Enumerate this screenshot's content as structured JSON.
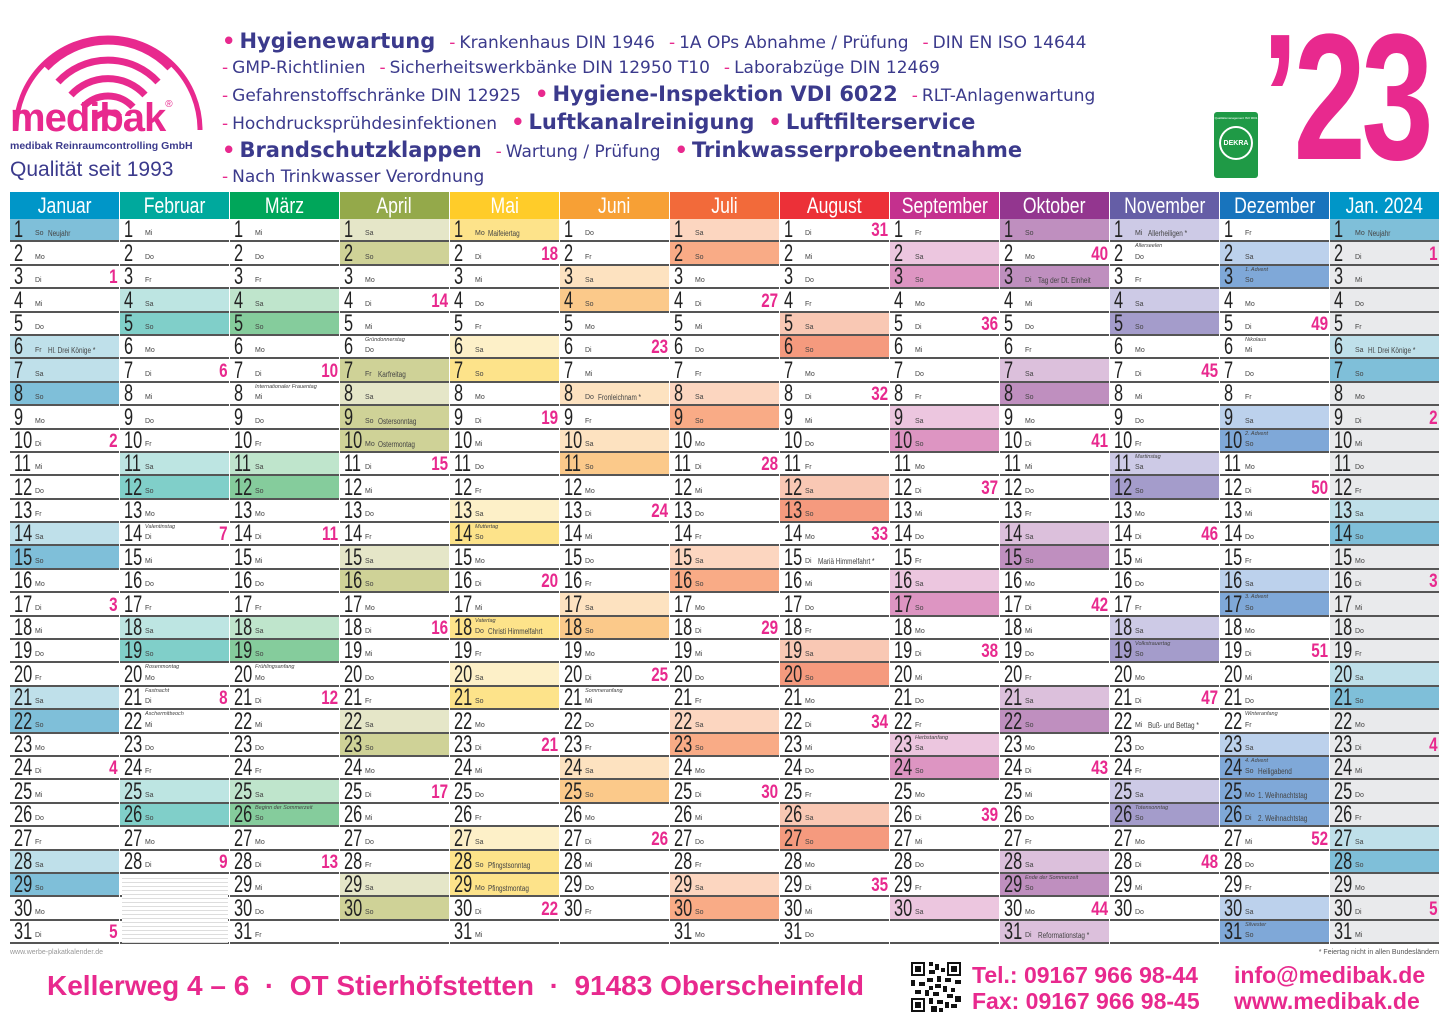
{
  "brand": {
    "name": "medibak",
    "registered": "®",
    "company": "medibak Reinraumcontrolling GmbH",
    "since": "Qualität seit 1993",
    "year": "’23",
    "cert_title": "Qualitätsmanagement ISO 9001",
    "cert_brand": "DEKRA"
  },
  "slogans": [
    {
      "text": "Hygienewartung",
      "bold": true
    },
    {
      "text": "Krankenhaus DIN 1946",
      "bold": false
    },
    {
      "text": "1A OPs Abnahme / Prüfung",
      "bold": false
    },
    {
      "text": "DIN EN ISO 14644",
      "bold": false
    },
    {
      "text": "GMP-Richtlinien",
      "bold": false
    },
    {
      "text": "Sicherheitswerkbänke DIN 12950 T10",
      "bold": false
    },
    {
      "text": "Laborabzüge DIN 12469",
      "bold": false
    },
    {
      "text": "Gefahrenstoffschränke DIN 12925",
      "bold": false
    },
    {
      "text": "Hygiene-Inspektion VDI 6022",
      "bold": true
    },
    {
      "text": "RLT-Anlagenwartung",
      "bold": false
    },
    {
      "text": "Hochdrucksprühdesinfektionen",
      "bold": false
    },
    {
      "text": "Luftkanalreinigung",
      "bold": true
    },
    {
      "text": "Luftfilterservice",
      "bold": true
    },
    {
      "text": "Brandschutzklappen",
      "bold": true
    },
    {
      "text": "Wartung / Prüfung",
      "bold": false
    },
    {
      "text": "Trinkwasserprobeentnahme",
      "bold": true
    },
    {
      "text": "Nach Trinkwasser Verordnung",
      "bold": false
    }
  ],
  "weekdays": [
    "Mo",
    "Di",
    "Mi",
    "Do",
    "Fr",
    "Sa",
    "So"
  ],
  "months": [
    {
      "name": "Januar",
      "start": 6,
      "days": 31,
      "color": "#0096c8",
      "sat": "#bfe0ea",
      "sun": "#7fbfd9",
      "weeks": {
        "3": 1,
        "10": 2,
        "17": 3,
        "24": 4,
        "31": 5
      },
      "holidays": [
        {
          "day": 1,
          "label": "Neujahr",
          "style": "inline",
          "shade": "sun"
        },
        {
          "day": 6,
          "label": "Hl. Drei Könige *",
          "style": "inline",
          "shade": "sat"
        }
      ]
    },
    {
      "name": "Februar",
      "start": 2,
      "days": 28,
      "color": "#00a99d",
      "sat": "#bde5e2",
      "sun": "#80cfc9",
      "weeks": {
        "7": 6,
        "14": 7,
        "21": 8,
        "28": 9
      },
      "holidays": [
        {
          "day": 14,
          "label": "Valentinstag",
          "style": "note"
        },
        {
          "day": 20,
          "label": "Rosenmontag",
          "style": "note"
        },
        {
          "day": 21,
          "label": "Fastnacht",
          "style": "note"
        },
        {
          "day": 22,
          "label": "Aschermittwoch",
          "style": "note"
        }
      ]
    },
    {
      "name": "März",
      "start": 2,
      "days": 31,
      "color": "#00a65a",
      "sat": "#bfe5cc",
      "sun": "#85cc9c",
      "weeks": {
        "7": 10,
        "14": 11,
        "21": 12,
        "28": 13
      },
      "holidays": [
        {
          "day": 8,
          "label": "Internationaler Frauentag",
          "style": "note"
        },
        {
          "day": 20,
          "label": "Frühlingsanfang",
          "style": "note"
        },
        {
          "day": 26,
          "label": "Beginn der Sommerzeit",
          "style": "note"
        }
      ]
    },
    {
      "name": "April",
      "start": 5,
      "days": 30,
      "color": "#94a94a",
      "sat": "#e5e6c8",
      "sun": "#cfd297",
      "weeks": {
        "4": 14,
        "11": 15,
        "18": 16,
        "25": 17
      },
      "holidays": [
        {
          "day": 6,
          "label": "Gründonnerstag",
          "style": "note"
        },
        {
          "day": 7,
          "label": "Karfreitag",
          "style": "inline",
          "shade": "sun"
        },
        {
          "day": 9,
          "label": "Ostersonntag",
          "style": "inline"
        },
        {
          "day": 10,
          "label": "Ostermontag",
          "style": "inline",
          "shade": "sun"
        }
      ]
    },
    {
      "name": "Mai",
      "start": 0,
      "days": 31,
      "color": "#ffcc29",
      "sat": "#fdf0c8",
      "sun": "#fde38a",
      "weeks": {
        "2": 18,
        "9": 19,
        "16": 20,
        "23": 21,
        "30": 22
      },
      "holidays": [
        {
          "day": 1,
          "label": "Maifeiertag",
          "style": "inline",
          "shade": "sun"
        },
        {
          "day": 14,
          "label": "Muttertag",
          "style": "note"
        },
        {
          "day": 18,
          "label": "Vatertag",
          "style": "note"
        },
        {
          "day": 18,
          "label": "Christi Himmelfahrt",
          "style": "inline",
          "shade": "sun"
        },
        {
          "day": 28,
          "label": "Pfingstsonntag",
          "style": "inline"
        },
        {
          "day": 29,
          "label": "Pfingstmontag",
          "style": "inline",
          "shade": "sun"
        }
      ]
    },
    {
      "name": "Juni",
      "start": 3,
      "days": 30,
      "color": "#f7a035",
      "sat": "#fde2c0",
      "sun": "#fbc98a",
      "weeks": {
        "6": 23,
        "13": 24,
        "20": 25,
        "27": 26
      },
      "holidays": [
        {
          "day": 8,
          "label": "Fronleichnam *",
          "style": "inline",
          "shade": "sat"
        },
        {
          "day": 21,
          "label": "Sommeranfang",
          "style": "note"
        }
      ]
    },
    {
      "name": "Juli",
      "start": 5,
      "days": 31,
      "color": "#f26a3a",
      "sat": "#fcd6c0",
      "sun": "#f9ab86",
      "weeks": {
        "4": 27,
        "11": 28,
        "18": 29,
        "25": 30
      },
      "holidays": []
    },
    {
      "name": "August",
      "start": 1,
      "days": 31,
      "color": "#ec3038",
      "sat": "#f9c8b4",
      "sun": "#f59a7e",
      "weeks": {
        "1": 31,
        "8": 32,
        "14": 33,
        "22": 34,
        "29": 35
      },
      "holidays": [
        {
          "day": 15,
          "label": "Mariä Himmelfahrt *",
          "style": "inline"
        }
      ]
    },
    {
      "name": "September",
      "start": 4,
      "days": 30,
      "color": "#c4308e",
      "sat": "#ecc6df",
      "sun": "#dd95c2",
      "weeks": {
        "5": 36,
        "12": 37,
        "19": 38,
        "26": 39
      },
      "holidays": [
        {
          "day": 23,
          "label": "Herbstanfang",
          "style": "note"
        }
      ]
    },
    {
      "name": "Oktober",
      "start": 6,
      "days": 31,
      "color": "#93368f",
      "sat": "#dcc0dc",
      "sun": "#bf8fbf",
      "weeks": {
        "2": 40,
        "10": 41,
        "17": 42,
        "24": 43,
        "30": 44
      },
      "holidays": [
        {
          "day": 3,
          "label": "Tag der Dt. Einheit",
          "style": "inline",
          "shade": "sun"
        },
        {
          "day": 29,
          "label": "Ende der Sommerzeit",
          "style": "note"
        },
        {
          "day": 31,
          "label": "Reformationstag *",
          "style": "inline",
          "shade": "sat"
        }
      ]
    },
    {
      "name": "November",
      "start": 2,
      "days": 30,
      "color": "#655ea6",
      "sat": "#cdcae6",
      "sun": "#a49ccb",
      "weeks": {
        "7": 45,
        "14": 46,
        "21": 47,
        "28": 48
      },
      "holidays": [
        {
          "day": 1,
          "label": "Allerheiligen *",
          "style": "inline",
          "shade": "sat"
        },
        {
          "day": 2,
          "label": "Allerseelen",
          "style": "note"
        },
        {
          "day": 11,
          "label": "Martinstag",
          "style": "note"
        },
        {
          "day": 19,
          "label": "Volkstrauertag",
          "style": "note"
        },
        {
          "day": 22,
          "label": "Buß- und Bettag *",
          "style": "inline"
        },
        {
          "day": 26,
          "label": "Totensonntag",
          "style": "note"
        }
      ]
    },
    {
      "name": "Dezember",
      "start": 4,
      "days": 31,
      "color": "#1874bd",
      "sat": "#bcd1ec",
      "sun": "#7fa8d8",
      "weeks": {
        "5": 49,
        "12": 50,
        "19": 51,
        "27": 52
      },
      "holidays": [
        {
          "day": 3,
          "label": "1. Advent",
          "style": "note"
        },
        {
          "day": 6,
          "label": "Nikolaus",
          "style": "note"
        },
        {
          "day": 10,
          "label": "2. Advent",
          "style": "note"
        },
        {
          "day": 17,
          "label": "3. Advent",
          "style": "note"
        },
        {
          "day": 22,
          "label": "Winteranfang",
          "style": "note"
        },
        {
          "day": 24,
          "label": "4. Advent",
          "style": "note"
        },
        {
          "day": 24,
          "label": "Heiligabend",
          "style": "inline"
        },
        {
          "day": 25,
          "label": "1. Weihnachtstag",
          "style": "inline",
          "shade": "sun"
        },
        {
          "day": 26,
          "label": "2. Weihnachtstag",
          "style": "inline",
          "shade": "sun"
        },
        {
          "day": 31,
          "label": "Silvester",
          "style": "note"
        }
      ]
    },
    {
      "name": "Jan. 2024",
      "start": 0,
      "days": 31,
      "color": "#0096c8",
      "sat": "#bfe0ea",
      "sun": "#7fbfd9",
      "workday": "#e9eaec",
      "weeks": {
        "2": 1,
        "9": 2,
        "16": 3,
        "23": 4,
        "30": 5
      },
      "holidays": [
        {
          "day": 1,
          "label": "Neujahr",
          "style": "inline",
          "shade": "sun"
        },
        {
          "day": 6,
          "label": "Hl. Drei Könige *",
          "style": "inline"
        }
      ]
    }
  ],
  "footer": {
    "website_small": "www.werbe-plakatkalender.de",
    "holiday_footnote": "* Feiertag nicht in allen Bundesländern",
    "address": "Kellerweg 4 – 6  ·  OT Stierhöfstetten  ·  91483 Oberscheinfeld",
    "tel": "Tel.: 09167 966 98-44",
    "fax": "Fax: 09167 966 98-45",
    "email": "info@medibak.de",
    "web": "www.medibak.de"
  }
}
